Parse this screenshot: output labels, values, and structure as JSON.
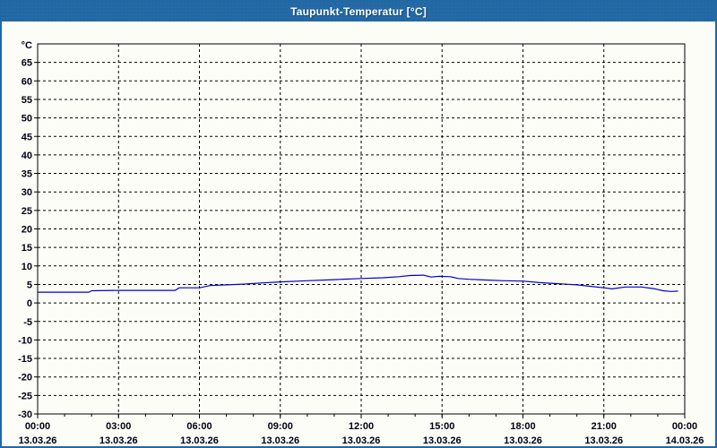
{
  "window": {
    "title": "Taupunkt-Temperatur [°C]",
    "titlebar_color": "#2268a4",
    "border_color": "#2268a4",
    "background_color": "#fcfdf7"
  },
  "chart_data": {
    "type": "line",
    "title": "Taupunkt-Temperatur [°C]",
    "y_unit_label": "°C",
    "xlabel": "",
    "ylabel": "Taupunkt-Temperatur",
    "ylim": [
      -30,
      70
    ],
    "xlim_hours": [
      0,
      24
    ],
    "grid": "dashed",
    "legend": "none",
    "plot_bg": "#fdfdf8",
    "axis_color": "#000000",
    "grid_color": "#000000",
    "text_color": "#000014",
    "yticks": [
      65,
      60,
      55,
      50,
      45,
      40,
      35,
      30,
      25,
      20,
      15,
      10,
      5,
      0,
      -5,
      -10,
      -15,
      -20,
      -25,
      -30
    ],
    "xticks": [
      {
        "hour": 0,
        "time": "00:00",
        "date": "13.03.26"
      },
      {
        "hour": 3,
        "time": "03:00",
        "date": "13.03.26"
      },
      {
        "hour": 6,
        "time": "06:00",
        "date": "13.03.26"
      },
      {
        "hour": 9,
        "time": "09:00",
        "date": "13.03.26"
      },
      {
        "hour": 12,
        "time": "12:00",
        "date": "13.03.26"
      },
      {
        "hour": 15,
        "time": "15:00",
        "date": "13.03.26"
      },
      {
        "hour": 18,
        "time": "18:00",
        "date": "13.03.26"
      },
      {
        "hour": 21,
        "time": "21:00",
        "date": "13.03.26"
      },
      {
        "hour": 24,
        "time": "00:00",
        "date": "14.03.26"
      }
    ],
    "x_minor_tick_every_hours": 1,
    "series": [
      {
        "name": "Taupunkt-Temperatur",
        "color": "#0000cc",
        "points": [
          [
            0.0,
            2.9
          ],
          [
            1.0,
            2.9
          ],
          [
            1.9,
            2.9
          ],
          [
            2.0,
            3.3
          ],
          [
            3.0,
            3.4
          ],
          [
            5.1,
            3.4
          ],
          [
            5.25,
            4.1
          ],
          [
            6.0,
            4.1
          ],
          [
            6.4,
            4.7
          ],
          [
            7.0,
            4.9
          ],
          [
            7.7,
            5.1
          ],
          [
            8.3,
            5.4
          ],
          [
            9.0,
            5.7
          ],
          [
            10.0,
            6.0
          ],
          [
            11.0,
            6.3
          ],
          [
            12.0,
            6.6
          ],
          [
            12.8,
            6.8
          ],
          [
            13.4,
            7.1
          ],
          [
            13.8,
            7.4
          ],
          [
            14.3,
            7.5
          ],
          [
            14.6,
            7.0
          ],
          [
            14.9,
            7.2
          ],
          [
            15.3,
            7.1
          ],
          [
            15.6,
            6.6
          ],
          [
            16.0,
            6.4
          ],
          [
            16.6,
            6.2
          ],
          [
            17.3,
            6.0
          ],
          [
            18.0,
            5.9
          ],
          [
            18.6,
            5.5
          ],
          [
            19.3,
            5.2
          ],
          [
            20.0,
            4.9
          ],
          [
            20.6,
            4.4
          ],
          [
            21.0,
            4.1
          ],
          [
            21.3,
            3.8
          ],
          [
            21.8,
            4.3
          ],
          [
            22.4,
            4.3
          ],
          [
            22.9,
            3.8
          ],
          [
            23.2,
            3.3
          ],
          [
            23.5,
            3.1
          ],
          [
            23.75,
            3.2
          ]
        ]
      }
    ]
  }
}
